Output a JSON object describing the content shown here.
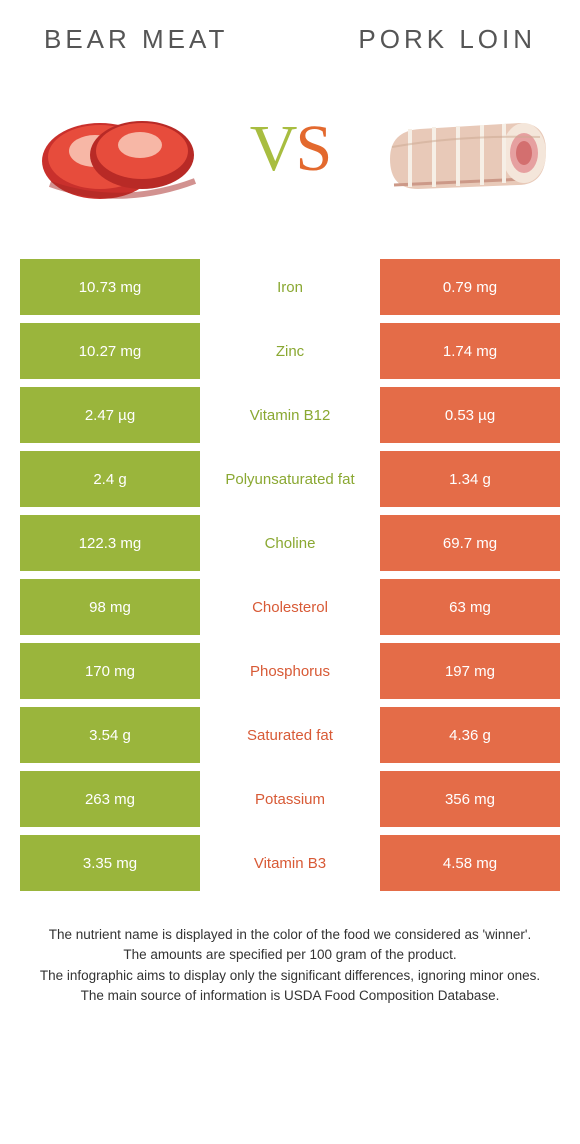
{
  "colors": {
    "left_bg": "#9ab53c",
    "right_bg": "#e46c48",
    "left_text": "#8aa832",
    "right_text": "#d85a36",
    "cell_text": "#ffffff",
    "body_text": "#333333",
    "title_text": "#555555"
  },
  "titles": {
    "left": "BEAR MEAT",
    "right": "PORK LOIN"
  },
  "vs": {
    "v": "V",
    "s": "S"
  },
  "rows": [
    {
      "label": "Iron",
      "left": "10.73 mg",
      "right": "0.79 mg",
      "winner": "left"
    },
    {
      "label": "Zinc",
      "left": "10.27 mg",
      "right": "1.74 mg",
      "winner": "left"
    },
    {
      "label": "Vitamin B12",
      "left": "2.47 µg",
      "right": "0.53 µg",
      "winner": "left"
    },
    {
      "label": "Polyunsaturated fat",
      "left": "2.4 g",
      "right": "1.34 g",
      "winner": "left"
    },
    {
      "label": "Choline",
      "left": "122.3 mg",
      "right": "69.7 mg",
      "winner": "left"
    },
    {
      "label": "Cholesterol",
      "left": "98 mg",
      "right": "63 mg",
      "winner": "right"
    },
    {
      "label": "Phosphorus",
      "left": "170 mg",
      "right": "197 mg",
      "winner": "right"
    },
    {
      "label": "Saturated fat",
      "left": "3.54 g",
      "right": "4.36 g",
      "winner": "right"
    },
    {
      "label": "Potassium",
      "left": "263 mg",
      "right": "356 mg",
      "winner": "right"
    },
    {
      "label": "Vitamin B3",
      "left": "3.35 mg",
      "right": "4.58 mg",
      "winner": "right"
    }
  ],
  "footnote": {
    "l1": "The nutrient name is displayed in the color of the food we considered as 'winner'.",
    "l2": "The amounts are specified per 100 gram of the product.",
    "l3": "The infographic aims to display only the significant differences, ignoring minor ones.",
    "l4": "The main source of information is USDA Food Composition Database."
  }
}
